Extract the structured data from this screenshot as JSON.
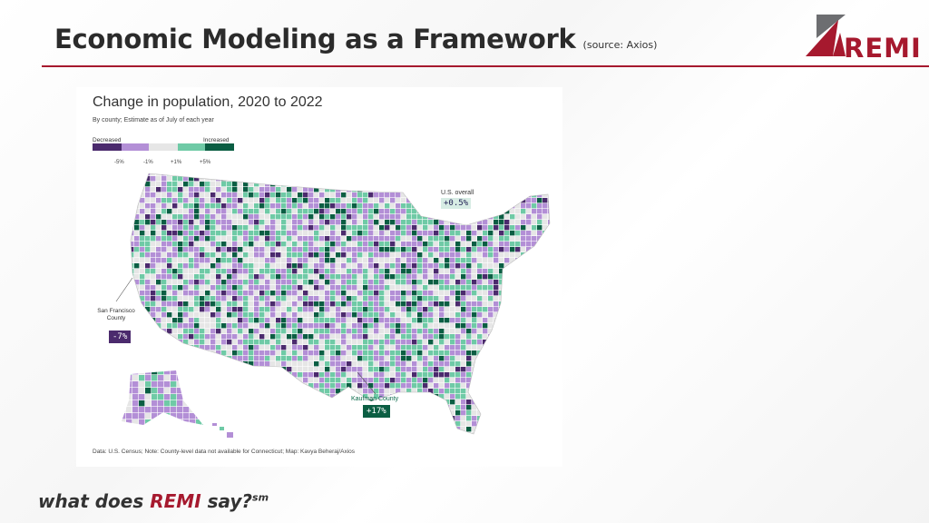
{
  "slide": {
    "title": "Economic Modeling as a Framework",
    "source": "(source: Axios)",
    "logo_text": "REMI",
    "tagline_pre": "what does ",
    "tagline_brand": "REMI",
    "tagline_post": " say?",
    "tagline_mark": "sm"
  },
  "map": {
    "title": "Change in population, 2020 to 2022",
    "subtitle": "By county; Estimate as of July of each year",
    "legend": {
      "low_label": "Decreased",
      "high_label": "Increased",
      "ticks": [
        "-5%",
        "-1%",
        "+1%",
        "+5%"
      ],
      "colors": [
        "#4b2a6d",
        "#b38fd6",
        "#e6e6e6",
        "#6fcaa6",
        "#0b5e43"
      ]
    },
    "us_overall_label": "U.S. overall",
    "us_overall_value": "+0.5%",
    "callouts": [
      {
        "label": "San Francisco County",
        "value": "-7%"
      },
      {
        "label": "Kaufman County",
        "value": "+17%"
      }
    ],
    "credit": "Data: U.S. Census; Note: County-level data not available for Connecticut; Map: Kavya Beheraj/Axios"
  }
}
